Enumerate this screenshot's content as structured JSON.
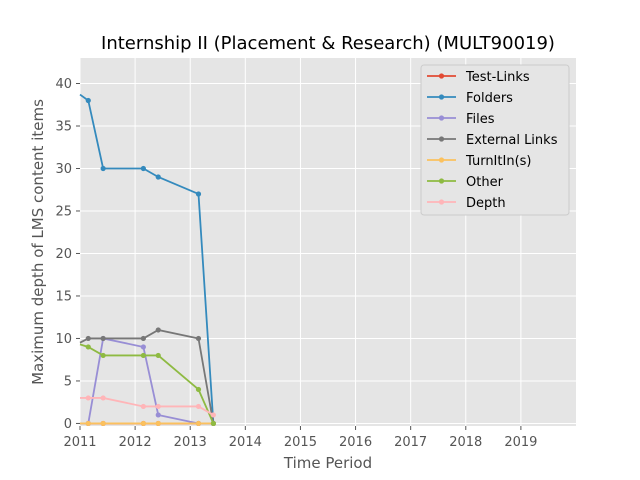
{
  "chart_data": {
    "type": "line",
    "title": "Internship II (Placement & Research) (MULT90019)",
    "xlabel": "Time Period",
    "ylabel": "Maximum depth of LMS content items",
    "xlim": [
      2011.0,
      2020.0
    ],
    "ylim": [
      -0.3,
      43.0
    ],
    "x_ticks": [
      2011,
      2012,
      2013,
      2014,
      2015,
      2016,
      2017,
      2018,
      2019
    ],
    "y_ticks": [
      0,
      5,
      10,
      15,
      20,
      25,
      30,
      35,
      40
    ],
    "grid": true,
    "legend_position": "top-right",
    "series": [
      {
        "name": "Test-Links",
        "color": "#E24A33",
        "x": [
          2011.0,
          2011.15,
          2011.42,
          2012.15,
          2012.42,
          2013.15,
          2013.42
        ],
        "y": [
          0,
          0,
          0,
          0,
          0,
          0,
          0
        ]
      },
      {
        "name": "Folders",
        "color": "#348ABD",
        "x": [
          2011.0,
          2011.15,
          2011.42,
          2012.15,
          2012.42,
          2013.15,
          2013.42
        ],
        "y": [
          38.7,
          38,
          30,
          30,
          29,
          27,
          0
        ]
      },
      {
        "name": "Files",
        "color": "#988ED5",
        "x": [
          2011.0,
          2011.15,
          2011.42,
          2012.15,
          2012.42,
          2013.15,
          2013.42
        ],
        "y": [
          0,
          0,
          10,
          9,
          1,
          0,
          0
        ]
      },
      {
        "name": "External Links",
        "color": "#777777",
        "x": [
          2011.0,
          2011.15,
          2011.42,
          2012.15,
          2012.42,
          2013.15,
          2013.42
        ],
        "y": [
          9.5,
          10,
          10,
          10,
          11,
          10,
          0
        ]
      },
      {
        "name": "TurnItIn(s)",
        "color": "#FBC15E",
        "x": [
          2011.0,
          2011.15,
          2011.42,
          2012.15,
          2012.42,
          2013.15,
          2013.42
        ],
        "y": [
          0,
          0,
          0,
          0,
          0,
          0,
          0
        ]
      },
      {
        "name": "Other",
        "color": "#8EBA42",
        "x": [
          2011.0,
          2011.15,
          2011.42,
          2012.15,
          2012.42,
          2013.15,
          2013.42
        ],
        "y": [
          9.3,
          9,
          8,
          8,
          8,
          4,
          0
        ]
      },
      {
        "name": "Depth",
        "color": "#FFB5B8",
        "x": [
          2011.0,
          2011.15,
          2011.42,
          2012.15,
          2012.42,
          2013.15,
          2013.42
        ],
        "y": [
          3,
          3,
          3,
          2,
          2,
          2,
          1
        ]
      }
    ]
  }
}
